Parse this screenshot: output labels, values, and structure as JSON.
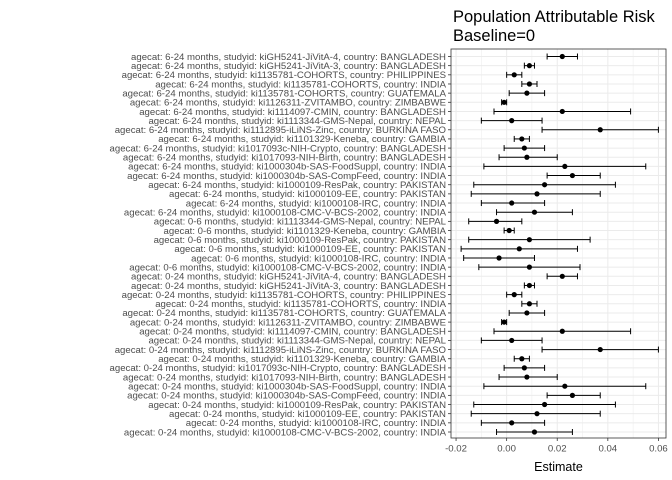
{
  "chart_data": {
    "type": "scatter",
    "title": [
      "Population Attributable Risk",
      "Baseline=0"
    ],
    "xlabel": "Estimate",
    "ylabel": "",
    "xlim": [
      -0.022,
      0.063
    ],
    "x_ticks": [
      -0.02,
      0.0,
      0.02,
      0.04,
      0.06
    ],
    "x_tick_labels": [
      "-0.02",
      "0.00",
      "0.02",
      "0.04",
      "0.06"
    ],
    "grid": true,
    "legend": "none",
    "colors": {
      "point": "#000000",
      "errorbar": "#000000",
      "grid": "#ebebeb",
      "panel_border": "#333333"
    },
    "rows": [
      {
        "label": "agecat: 6-24 months, studyid: kiGH5241-JiVitA-4, country: BANGLADESH",
        "estimate": 0.022,
        "lower": 0.016,
        "upper": 0.028
      },
      {
        "label": "agecat: 6-24 months, studyid: kiGH5241-JiVitA-3, country: BANGLADESH",
        "estimate": 0.009,
        "lower": 0.007,
        "upper": 0.011
      },
      {
        "label": "agecat: 6-24 months, studyid: ki1135781-COHORTS, country: PHILIPPINES",
        "estimate": 0.003,
        "lower": 0.0,
        "upper": 0.006
      },
      {
        "label": "agecat: 6-24 months, studyid: ki1135781-COHORTS, country: INDIA",
        "estimate": 0.009,
        "lower": 0.006,
        "upper": 0.012
      },
      {
        "label": "agecat: 6-24 months, studyid: ki1135781-COHORTS, country: GUATEMALA",
        "estimate": 0.008,
        "lower": 0.001,
        "upper": 0.015
      },
      {
        "label": "agecat: 6-24 months, studyid: ki1126311-ZVITAMBO, country: ZIMBABWE",
        "estimate": -0.001,
        "lower": -0.002,
        "upper": 0.0
      },
      {
        "label": "agecat: 6-24 months, studyid: ki1114097-CMIN, country: BANGLADESH",
        "estimate": 0.022,
        "lower": -0.005,
        "upper": 0.049
      },
      {
        "label": "agecat: 6-24 months, studyid: ki1113344-GMS-Nepal, country: NEPAL",
        "estimate": 0.002,
        "lower": -0.01,
        "upper": 0.014
      },
      {
        "label": "agecat: 6-24 months, studyid: ki1112895-iLiNS-Zinc, country: BURKINA FASO",
        "estimate": 0.037,
        "lower": 0.014,
        "upper": 0.06
      },
      {
        "label": "agecat: 6-24 months, studyid: ki1101329-Keneba, country: GAMBIA",
        "estimate": 0.006,
        "lower": 0.003,
        "upper": 0.009
      },
      {
        "label": "agecat: 6-24 months, studyid: ki1017093c-NIH-Crypto, country: BANGLADESH",
        "estimate": 0.007,
        "lower": -0.001,
        "upper": 0.015
      },
      {
        "label": "agecat: 6-24 months, studyid: ki1017093-NIH-Birth, country: BANGLADESH",
        "estimate": 0.008,
        "lower": -0.003,
        "upper": 0.02
      },
      {
        "label": "agecat: 6-24 months, studyid: ki1000304b-SAS-FoodSuppl, country: INDIA",
        "estimate": 0.023,
        "lower": -0.009,
        "upper": 0.055
      },
      {
        "label": "agecat: 6-24 months, studyid: ki1000304b-SAS-CompFeed, country: INDIA",
        "estimate": 0.026,
        "lower": 0.016,
        "upper": 0.037
      },
      {
        "label": "agecat: 6-24 months, studyid: ki1000109-ResPak, country: PAKISTAN",
        "estimate": 0.015,
        "lower": -0.013,
        "upper": 0.043
      },
      {
        "label": "agecat: 6-24 months, studyid: ki1000109-EE, country: PAKISTAN",
        "estimate": 0.012,
        "lower": -0.014,
        "upper": 0.037
      },
      {
        "label": "agecat: 6-24 months, studyid: ki1000108-IRC, country: INDIA",
        "estimate": 0.002,
        "lower": -0.01,
        "upper": 0.015
      },
      {
        "label": "agecat: 6-24 months, studyid: ki1000108-CMC-V-BCS-2002, country: INDIA",
        "estimate": 0.011,
        "lower": -0.004,
        "upper": 0.026
      },
      {
        "label": "agecat: 0-6 months, studyid: ki1113344-GMS-Nepal, country: NEPAL",
        "estimate": -0.004,
        "lower": -0.015,
        "upper": 0.006
      },
      {
        "label": "agecat: 0-6 months, studyid: ki1101329-Keneba, country: GAMBIA",
        "estimate": 0.001,
        "lower": -0.001,
        "upper": 0.003
      },
      {
        "label": "agecat: 0-6 months, studyid: ki1000109-ResPak, country: PAKISTAN",
        "estimate": 0.009,
        "lower": -0.015,
        "upper": 0.033
      },
      {
        "label": "agecat: 0-6 months, studyid: ki1000109-EE, country: PAKISTAN",
        "estimate": 0.005,
        "lower": -0.018,
        "upper": 0.028
      },
      {
        "label": "agecat: 0-6 months, studyid: ki1000108-IRC, country: INDIA",
        "estimate": -0.003,
        "lower": -0.017,
        "upper": 0.011
      },
      {
        "label": "agecat: 0-6 months, studyid: ki1000108-CMC-V-BCS-2002, country: INDIA",
        "estimate": 0.009,
        "lower": -0.011,
        "upper": 0.029
      },
      {
        "label": "agecat: 0-24 months, studyid: kiGH5241-JiVitA-4, country: BANGLADESH",
        "estimate": 0.022,
        "lower": 0.016,
        "upper": 0.028
      },
      {
        "label": "agecat: 0-24 months, studyid: kiGH5241-JiVitA-3, country: BANGLADESH",
        "estimate": 0.009,
        "lower": 0.007,
        "upper": 0.011
      },
      {
        "label": "agecat: 0-24 months, studyid: ki1135781-COHORTS, country: PHILIPPINES",
        "estimate": 0.003,
        "lower": 0.0,
        "upper": 0.006
      },
      {
        "label": "agecat: 0-24 months, studyid: ki1135781-COHORTS, country: INDIA",
        "estimate": 0.009,
        "lower": 0.006,
        "upper": 0.012
      },
      {
        "label": "agecat: 0-24 months, studyid: ki1135781-COHORTS, country: GUATEMALA",
        "estimate": 0.008,
        "lower": 0.001,
        "upper": 0.015
      },
      {
        "label": "agecat: 0-24 months, studyid: ki1126311-ZVITAMBO, country: ZIMBABWE",
        "estimate": -0.001,
        "lower": -0.002,
        "upper": 0.0
      },
      {
        "label": "agecat: 0-24 months, studyid: ki1114097-CMIN, country: BANGLADESH",
        "estimate": 0.022,
        "lower": -0.005,
        "upper": 0.049
      },
      {
        "label": "agecat: 0-24 months, studyid: ki1113344-GMS-Nepal, country: NEPAL",
        "estimate": 0.002,
        "lower": -0.01,
        "upper": 0.014
      },
      {
        "label": "agecat: 0-24 months, studyid: ki1112895-iLiNS-Zinc, country: BURKINA FASO",
        "estimate": 0.037,
        "lower": 0.014,
        "upper": 0.06
      },
      {
        "label": "agecat: 0-24 months, studyid: ki1101329-Keneba, country: GAMBIA",
        "estimate": 0.006,
        "lower": 0.003,
        "upper": 0.009
      },
      {
        "label": "agecat: 0-24 months, studyid: ki1017093c-NIH-Crypto, country: BANGLADESH",
        "estimate": 0.007,
        "lower": -0.001,
        "upper": 0.015
      },
      {
        "label": "agecat: 0-24 months, studyid: ki1017093-NIH-Birth, country: BANGLADESH",
        "estimate": 0.008,
        "lower": -0.003,
        "upper": 0.02
      },
      {
        "label": "agecat: 0-24 months, studyid: ki1000304b-SAS-FoodSuppl, country: INDIA",
        "estimate": 0.023,
        "lower": -0.009,
        "upper": 0.055
      },
      {
        "label": "agecat: 0-24 months, studyid: ki1000304b-SAS-CompFeed, country: INDIA",
        "estimate": 0.026,
        "lower": 0.016,
        "upper": 0.037
      },
      {
        "label": "agecat: 0-24 months, studyid: ki1000109-ResPak, country: PAKISTAN",
        "estimate": 0.015,
        "lower": -0.013,
        "upper": 0.043
      },
      {
        "label": "agecat: 0-24 months, studyid: ki1000109-EE, country: PAKISTAN",
        "estimate": 0.012,
        "lower": -0.014,
        "upper": 0.037
      },
      {
        "label": "agecat: 0-24 months, studyid: ki1000108-IRC, country: INDIA",
        "estimate": 0.002,
        "lower": -0.01,
        "upper": 0.015
      },
      {
        "label": "agecat: 0-24 months, studyid: ki1000108-CMC-V-BCS-2002, country: INDIA",
        "estimate": 0.011,
        "lower": -0.004,
        "upper": 0.026
      }
    ]
  }
}
